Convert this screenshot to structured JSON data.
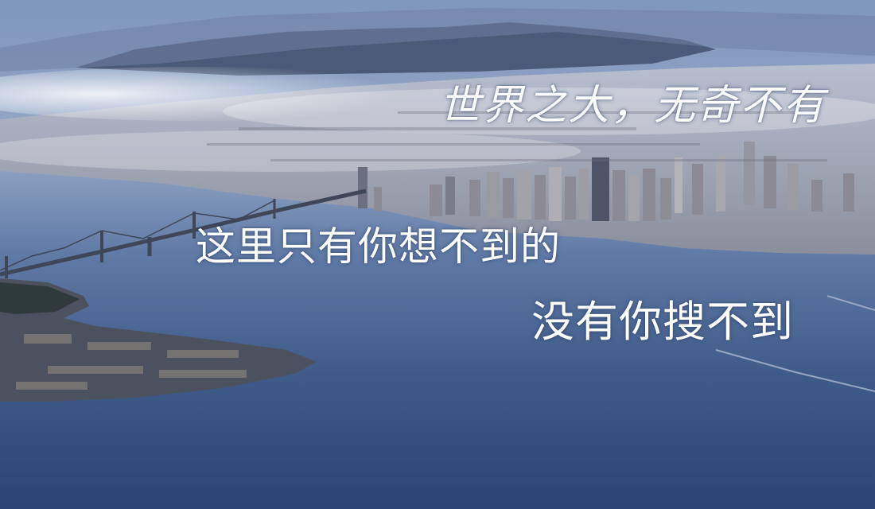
{
  "captions": {
    "line1": "世界之大，无奇不有",
    "line2": "这里只有你想不到的",
    "line3": "没有你搜不到"
  },
  "colors": {
    "sky": "#8fa4c6",
    "fog": "#dfe6f0",
    "water": "#3e5a86",
    "water_deep": "#243e6a",
    "city": "#7c7a84",
    "text": "#ffffff"
  }
}
